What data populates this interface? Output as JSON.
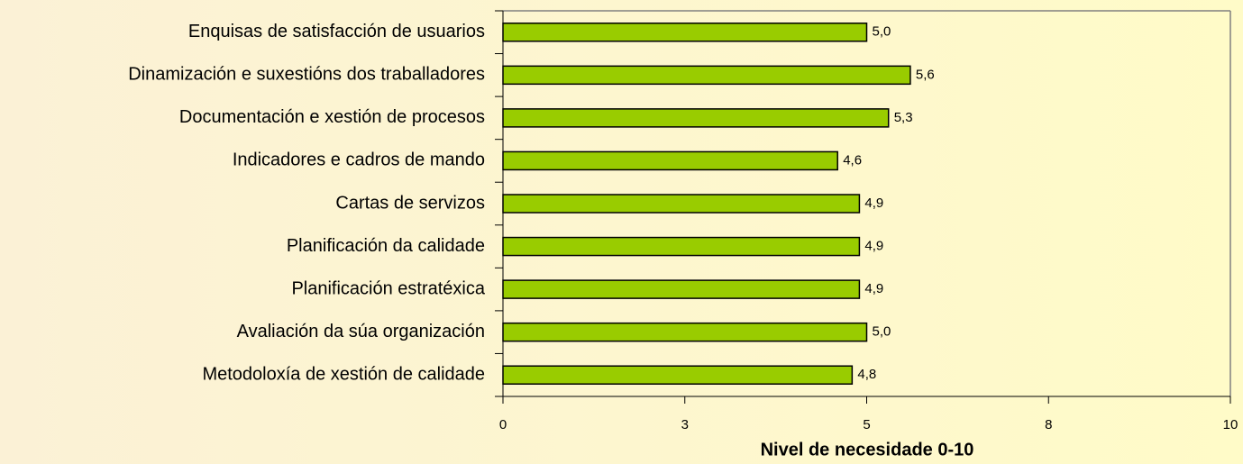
{
  "chart_data": {
    "type": "bar",
    "orientation": "horizontal",
    "categories": [
      "Enquisas de satisfacción de usuarios",
      "Dinamización e suxestións dos traballadores",
      "Documentación e xestión de procesos",
      "Indicadores e cadros de mando",
      "Cartas de servizos",
      "Planificación da calidade",
      "Planificación estratéxica",
      "Avaliación da súa organización",
      "Metodoloxía de xestión de calidade"
    ],
    "values": [
      5.0,
      5.6,
      5.3,
      4.6,
      4.9,
      4.9,
      4.9,
      5.0,
      4.8
    ],
    "value_labels": [
      "5,0",
      "5,6",
      "5,3",
      "4,6",
      "4,9",
      "4,9",
      "4,9",
      "5,0",
      "4,8"
    ],
    "color": "#99cc00",
    "xlabel": "Nivel de necesidade 0-10",
    "xlim": [
      0,
      10
    ],
    "xticks": [
      0,
      {
        "value": 2.5,
        "label": "3"
      },
      5,
      {
        "value": 7.5,
        "label": "8"
      },
      10
    ]
  }
}
